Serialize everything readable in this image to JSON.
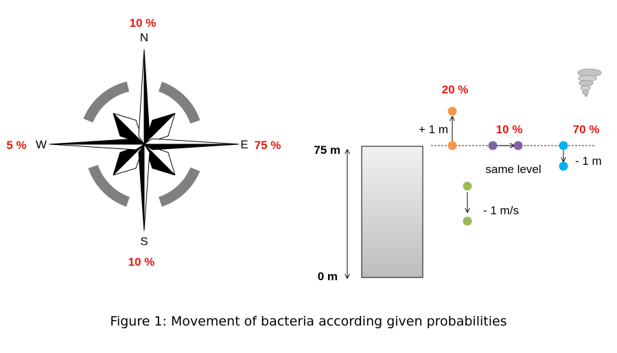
{
  "compass": {
    "north": {
      "letter": "N",
      "probability": "10 %"
    },
    "south": {
      "letter": "S",
      "probability": "10 %"
    },
    "east": {
      "letter": "E",
      "probability": "75 %"
    },
    "west": {
      "letter": "W",
      "probability": "5 %"
    }
  },
  "column": {
    "top_label": "75 m",
    "bottom_label": "0 m"
  },
  "movements": {
    "up": {
      "probability": "20 %",
      "label": "+ 1 m"
    },
    "same": {
      "probability": "10 %",
      "label": "same level"
    },
    "down": {
      "probability": "70 %",
      "label": "- 1 m"
    },
    "sinking": {
      "label": "- 1 m/s"
    }
  },
  "icons": {
    "tornado": "tornado-icon"
  },
  "colors": {
    "probability_text": "#e8140f",
    "orange_dot": "#f79646",
    "purple_dot": "#8064a2",
    "blue_dot": "#00b0f0",
    "green_dot": "#9bbb59",
    "compass_ring": "#808080"
  },
  "caption": "Figure 1: Movement of bacteria according given probabilities"
}
